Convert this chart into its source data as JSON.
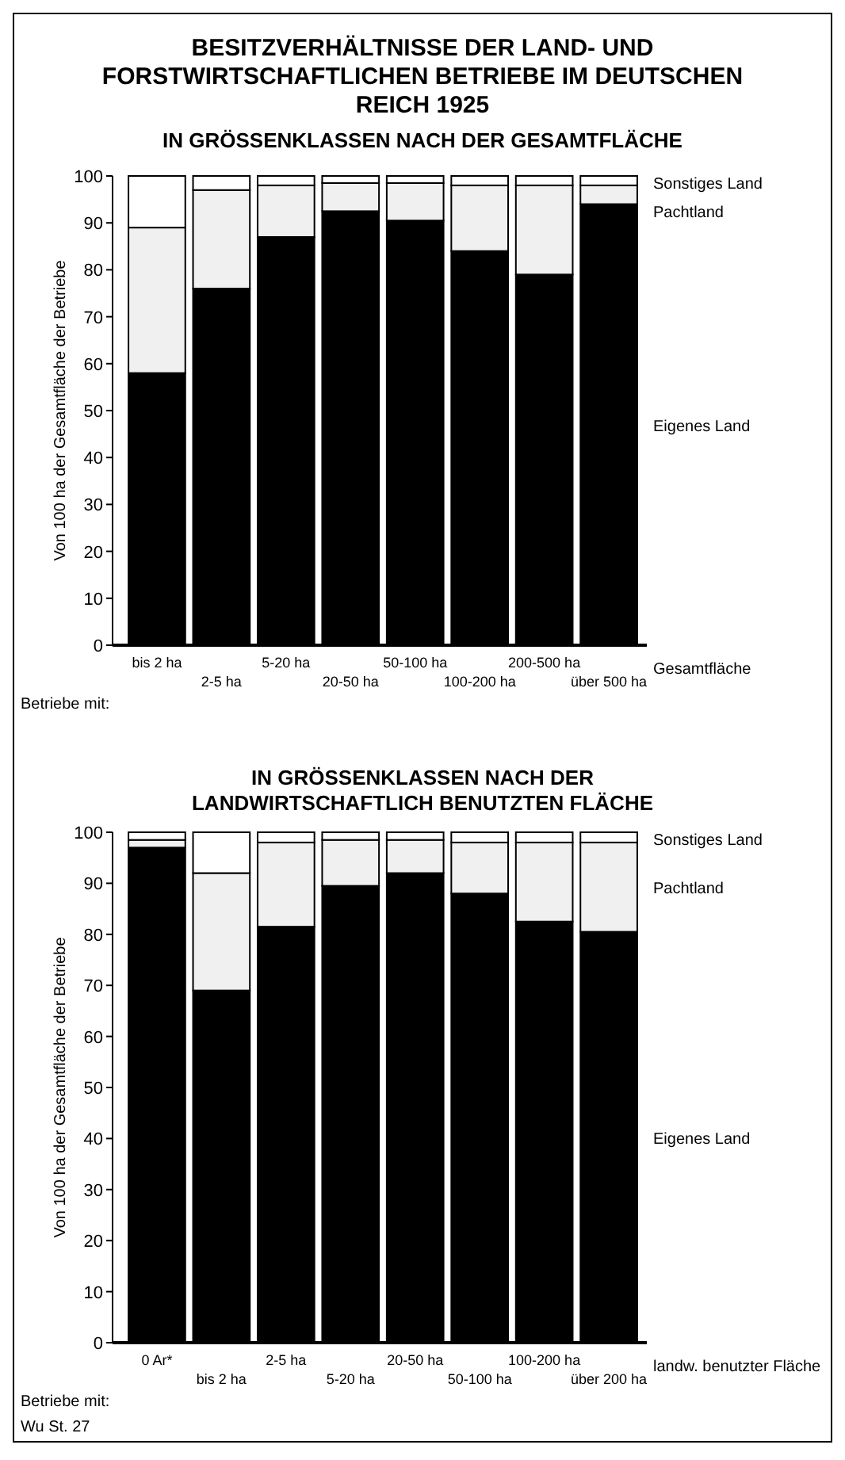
{
  "chart_data": [
    {
      "type": "bar",
      "title": "BESITZVERHÄLTNISSE DER LAND- UND FORSTWIRTSCHAFTLICHEN BETRIEBE IM DEUTSCHEN REICH 1925",
      "subtitle": "IN GRÖSSENKLASSEN NACH DER GESAMTFLÄCHE",
      "categories": [
        "bis 2 ha",
        "2-5 ha",
        "5-20 ha",
        "20-50 ha",
        "50-100 ha",
        "100-200 ha",
        "200-500 ha",
        "über 500 ha"
      ],
      "stacked": true,
      "series": [
        {
          "name": "Eigenes Land",
          "color": "#000000",
          "values": [
            58,
            76,
            87,
            92.5,
            90.5,
            84,
            79,
            94
          ]
        },
        {
          "name": "Pachtland",
          "color": "#f0f0f0",
          "values": [
            31,
            21,
            11,
            6,
            8,
            14,
            19,
            4
          ]
        },
        {
          "name": "Sonstiges Land",
          "color": "#ffffff",
          "values": [
            11,
            3,
            2,
            1.5,
            1.5,
            2,
            2,
            2
          ]
        }
      ],
      "ylim": [
        0,
        100
      ],
      "yticks": [
        0,
        10,
        20,
        30,
        40,
        50,
        60,
        70,
        80,
        90,
        100
      ],
      "xlabel": "Gesamtfläche",
      "ylabel": "Von 100 ha der Gesamtfläche der Betriebe",
      "legend": "right",
      "annotations": [
        "Betriebe mit:"
      ]
    },
    {
      "type": "bar",
      "title": "IN GRÖSSENKLASSEN NACH DER LANDWIRTSCHAFTLICH BENUTZTEN FLÄCHE",
      "categories": [
        "0 Ar*",
        "bis 2 ha",
        "2-5 ha",
        "5-20 ha",
        "20-50 ha",
        "50-100 ha",
        "100-200 ha",
        "über 200 ha"
      ],
      "stacked": true,
      "series": [
        {
          "name": "Eigenes Land",
          "color": "#000000",
          "values": [
            97,
            69,
            81.5,
            89.5,
            92,
            88,
            82.5,
            80.5
          ]
        },
        {
          "name": "Pachtland",
          "color": "#f0f0f0",
          "values": [
            1.5,
            23,
            16.5,
            9,
            6.5,
            10,
            15.5,
            17.5
          ]
        },
        {
          "name": "Sonstiges Land",
          "color": "#ffffff",
          "values": [
            1.5,
            8,
            2,
            1.5,
            1.5,
            2,
            2,
            2
          ]
        }
      ],
      "ylim": [
        0,
        100
      ],
      "yticks": [
        0,
        10,
        20,
        30,
        40,
        50,
        60,
        70,
        80,
        90,
        100
      ],
      "xlabel": "landw. benutzter Fläche",
      "ylabel": "Von 100 ha der Gesamtfläche der Betriebe",
      "legend": "right",
      "annotations": [
        "Betriebe mit:",
        "Wu St. 27"
      ]
    }
  ]
}
